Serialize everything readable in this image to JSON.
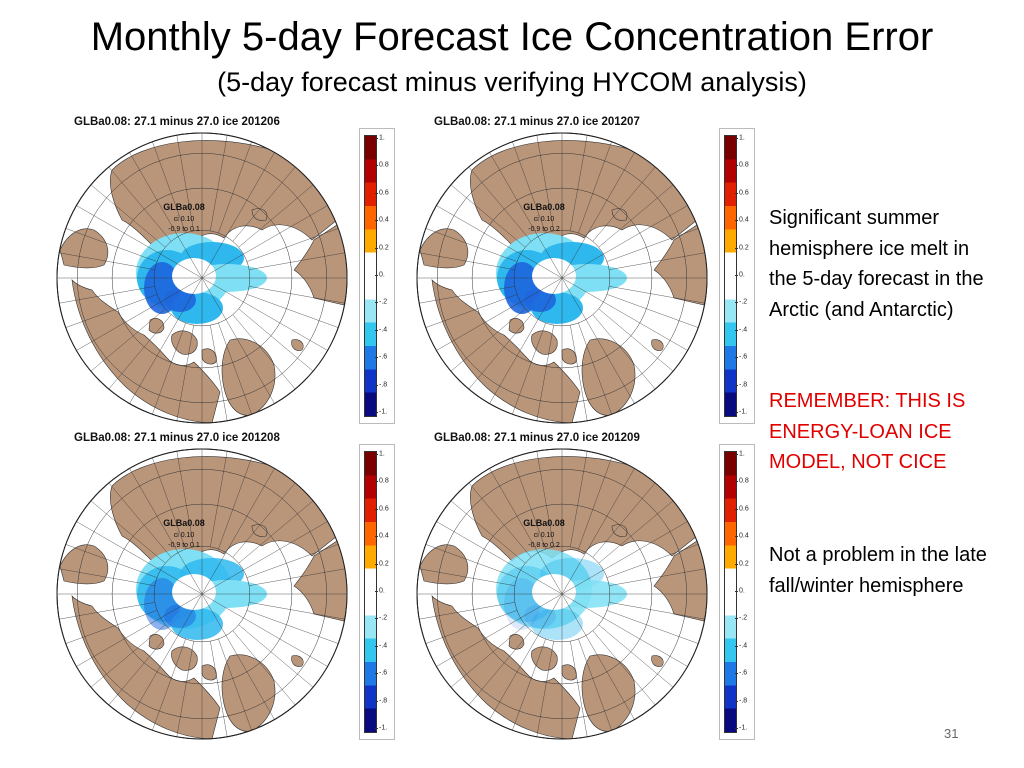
{
  "slide": {
    "title": "Monthly 5-day Forecast Ice Concentration Error",
    "subtitle": "(5-day forecast minus verifying HYCOM analysis)",
    "page_number": "31"
  },
  "panels": [
    {
      "title": "GLBa0.08: 27.1 minus 27.0 ice 201206",
      "label_name": "GLBa0.08",
      "label_ci": "ci 0.10",
      "label_range": "-0.9 to 0.1",
      "ice_level": "strong_melt"
    },
    {
      "title": "GLBa0.08: 27.1 minus 27.0 ice 201207",
      "label_name": "GLBa0.08",
      "label_ci": "ci 0.10",
      "label_range": "-0.9 to 0.2",
      "ice_level": "strong_melt"
    },
    {
      "title": "GLBa0.08: 27.1 minus 27.0 ice 201208",
      "label_name": "GLBa0.08",
      "label_ci": "ci 0.10",
      "label_range": "-0.9 to 0.1",
      "ice_level": "moderate_melt"
    },
    {
      "title": "GLBa0.08: 27.1 minus 27.0 ice 201209",
      "label_name": "GLBa0.08",
      "label_ci": "ci 0.10",
      "label_range": "-0.8 to 0.2",
      "ice_level": "weak_melt"
    }
  ],
  "colorbar": {
    "labels": [
      "1.",
      "0.8",
      "0.6",
      "0.4",
      "0.2",
      "0.",
      "-.2",
      "-.4",
      "-.6",
      "-.8",
      "-1."
    ],
    "colors": [
      "#7a0000",
      "#b30000",
      "#e02000",
      "#ff6600",
      "#ffaa00",
      "#ffffff",
      "#ffffff",
      "#99e6f5",
      "#33c6ee",
      "#1e78e6",
      "#1033c8",
      "#0a0a80"
    ]
  },
  "side": {
    "p1": "Significant summer hemisphere ice melt in the 5-day forecast in the Arctic (and Antarctic)",
    "p2": "REMEMBER: THIS IS ENERGY-LOAN ICE MODEL, NOT CICE",
    "p3": "Not a problem in the late fall/winter hemisphere"
  },
  "colors": {
    "land": "#b9957a",
    "ocean": "#ffffff",
    "ice_white": "#ffffff",
    "ice_light": "#7fe0f5",
    "ice_mid": "#2fb8ee",
    "ice_dark": "#1e66dd",
    "remember_red": "#e00000"
  }
}
